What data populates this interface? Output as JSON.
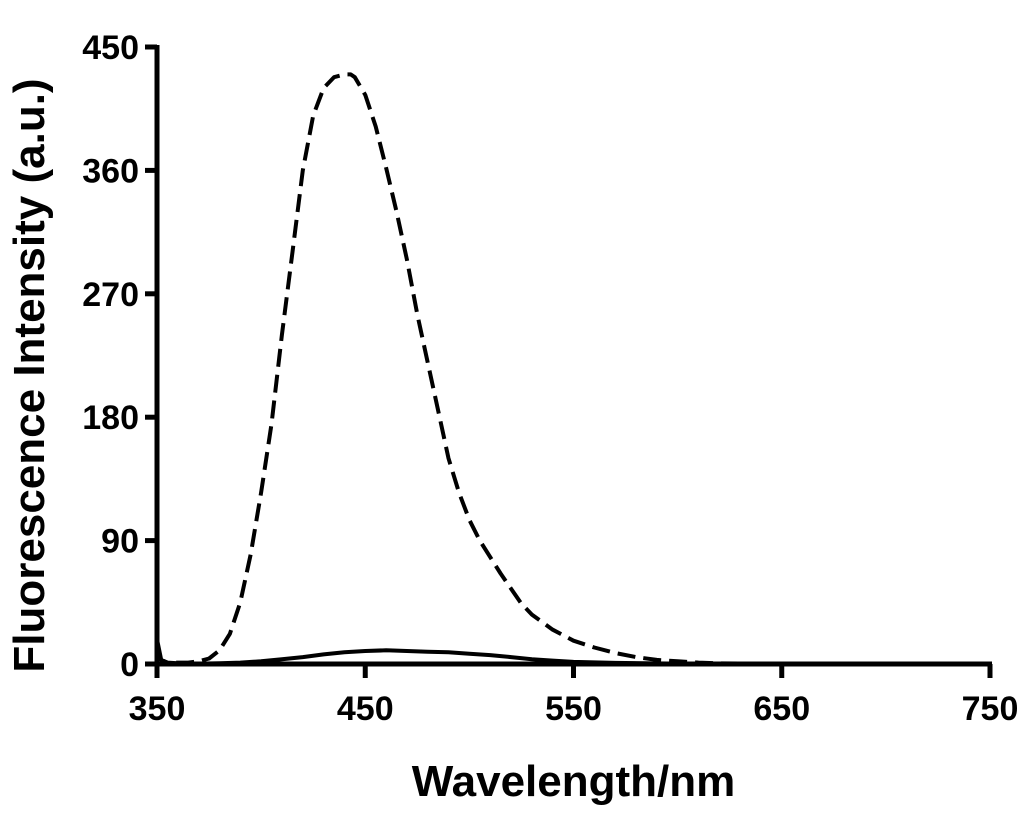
{
  "chart_data": {
    "type": "line",
    "title": "",
    "xlabel": "Wavelength/nm",
    "ylabel": "Fluorescence Intensity (a.u.)",
    "xlim": [
      350,
      750
    ],
    "ylim": [
      0,
      450
    ],
    "x_ticks": [
      350,
      450,
      550,
      650,
      750
    ],
    "y_ticks": [
      0,
      90,
      180,
      270,
      360,
      450
    ],
    "grid": false,
    "legend": "none",
    "series": [
      {
        "style": "dashed",
        "color": "#000000",
        "x": [
          350,
          352,
          355,
          360,
          365,
          370,
          375,
          380,
          385,
          390,
          395,
          400,
          405,
          410,
          415,
          420,
          425,
          430,
          435,
          440,
          443,
          445,
          450,
          455,
          460,
          465,
          470,
          475,
          480,
          485,
          490,
          495,
          500,
          505,
          510,
          515,
          520,
          525,
          530,
          540,
          550,
          560,
          570,
          580,
          590,
          600,
          610,
          620,
          650,
          700,
          750
        ],
        "y": [
          10,
          3,
          1,
          1,
          1,
          2,
          4,
          10,
          22,
          45,
          80,
          125,
          175,
          240,
          300,
          360,
          400,
          420,
          428,
          430,
          430,
          428,
          415,
          392,
          362,
          330,
          295,
          255,
          220,
          185,
          150,
          125,
          105,
          90,
          78,
          66,
          55,
          44,
          36,
          25,
          17,
          12,
          8,
          5,
          3,
          2,
          1,
          0.5,
          0,
          0,
          0
        ]
      },
      {
        "style": "solid",
        "color": "#000000",
        "x": [
          350,
          352,
          355,
          360,
          370,
          380,
          390,
          400,
          410,
          420,
          430,
          440,
          450,
          460,
          470,
          480,
          490,
          500,
          510,
          520,
          530,
          540,
          550,
          570,
          600,
          650,
          700,
          750
        ],
        "y": [
          18,
          3,
          1,
          0.5,
          0.3,
          0.5,
          1,
          2,
          3.5,
          5,
          7,
          8.5,
          9.5,
          10,
          9.5,
          9,
          8.5,
          7.5,
          6.5,
          5,
          3.5,
          2.5,
          1.5,
          0.8,
          0.3,
          0,
          0,
          0
        ]
      }
    ]
  }
}
